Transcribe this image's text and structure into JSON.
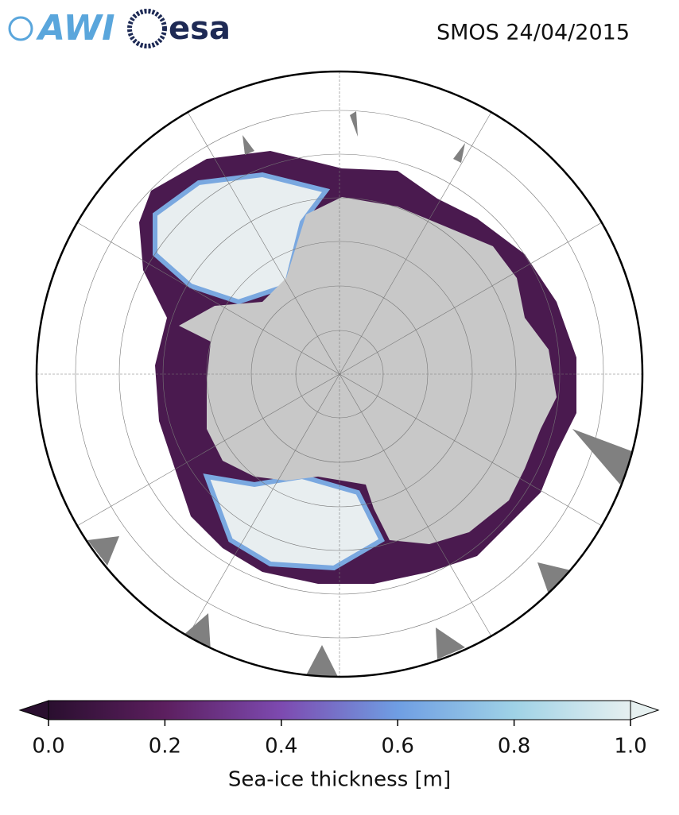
{
  "header": {
    "logos": [
      "AWI",
      "esa"
    ],
    "title": "SMOS 24/04/2015"
  },
  "colorbar": {
    "label": "Sea-ice thickness [m]",
    "lim": [
      0,
      1
    ],
    "ticks": [
      {
        "value": 0,
        "label": "0.0"
      },
      {
        "value": 0.2,
        "label": "0.2"
      },
      {
        "value": 0.4,
        "label": "0.4"
      },
      {
        "value": 0.6,
        "label": "0.6"
      },
      {
        "value": 0.8,
        "label": "0.8"
      },
      {
        "value": 1,
        "label": "1.0"
      }
    ],
    "colors": [
      "#2a0f2f",
      "#5c1f5f",
      "#7d4ab0",
      "#6f9ee3",
      "#9fd2e6",
      "#e6f0f0"
    ]
  }
}
